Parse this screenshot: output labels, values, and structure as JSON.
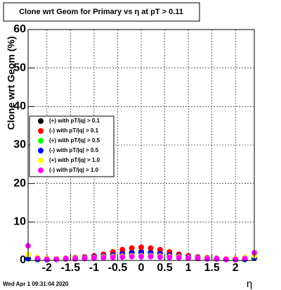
{
  "chart_data": {
    "type": "scatter",
    "title": "Clone wrt Geom for Primary vs   η at pT > 0.11",
    "y_label": "Clone wrt Geom (%)",
    "x_label": "η",
    "timestamp": "Wed Apr  1 09:31:04 2020",
    "xlim": [
      -2.4,
      2.4
    ],
    "ylim": [
      0,
      60
    ],
    "xticks": [
      -2,
      -1.5,
      -1,
      -0.5,
      0,
      0.5,
      1,
      1.5,
      2
    ],
    "yticks": [
      0,
      10,
      20,
      30,
      40,
      50,
      60
    ],
    "grid": true,
    "legend": "left",
    "x": [
      -2.4,
      -2.2,
      -2.0,
      -1.8,
      -1.6,
      -1.4,
      -1.2,
      -1.0,
      -0.8,
      -0.6,
      -0.4,
      -0.2,
      0,
      0.2,
      0.4,
      0.6,
      0.8,
      1.0,
      1.2,
      1.4,
      1.6,
      1.8,
      2.0,
      2.2,
      2.4
    ],
    "series": [
      {
        "name": "(+) with pT/|q| > 0.1",
        "color": "#000000",
        "values": [
          0.5,
          0.3,
          0.3,
          0.4,
          0.5,
          0.6,
          0.8,
          1.0,
          1.3,
          1.6,
          1.9,
          2.1,
          2.2,
          2.1,
          1.9,
          1.6,
          1.3,
          1.0,
          0.8,
          0.6,
          0.5,
          0.4,
          0.3,
          0.3,
          0.6
        ]
      },
      {
        "name": "(-) with pT/|q| > 0.1",
        "color": "#ff0000",
        "values": [
          0.6,
          0.4,
          0.3,
          0.4,
          0.5,
          0.7,
          0.9,
          1.2,
          1.6,
          2.2,
          2.8,
          3.2,
          3.4,
          3.2,
          2.8,
          2.2,
          1.6,
          1.2,
          0.9,
          0.7,
          0.5,
          0.4,
          0.3,
          0.4,
          0.8
        ]
      },
      {
        "name": "(+) with pT/|q| > 0.5",
        "color": "#00ff00",
        "values": [
          0.4,
          0.2,
          0.2,
          0.3,
          0.4,
          0.5,
          0.6,
          0.8,
          1.0,
          1.2,
          1.4,
          1.5,
          1.6,
          1.5,
          1.4,
          1.2,
          1.0,
          0.8,
          0.6,
          0.5,
          0.4,
          0.3,
          0.2,
          0.2,
          0.5
        ]
      },
      {
        "name": "(-) with pT/|q| > 0.5",
        "color": "#0000ff",
        "values": [
          0.5,
          0.3,
          0.2,
          0.3,
          0.4,
          0.5,
          0.7,
          0.9,
          1.1,
          1.4,
          1.7,
          1.9,
          2.0,
          1.9,
          1.7,
          1.4,
          1.1,
          0.9,
          0.7,
          0.5,
          0.4,
          0.3,
          0.2,
          0.3,
          0.6
        ]
      },
      {
        "name": "(+) with pT/|q| > 1.0",
        "color": "#ffff00",
        "values": [
          1.5,
          0.8,
          0.5,
          0.4,
          0.4,
          0.5,
          0.6,
          0.7,
          0.9,
          1.0,
          1.1,
          1.2,
          1.2,
          1.2,
          1.1,
          1.0,
          0.9,
          0.7,
          0.6,
          0.5,
          0.4,
          0.4,
          0.5,
          0.8,
          1.2
        ]
      },
      {
        "name": "(-) with pT/|q| > 1.0",
        "color": "#ff00ff",
        "values": [
          3.8,
          0.5,
          0.3,
          0.3,
          0.4,
          0.4,
          0.5,
          0.6,
          0.7,
          0.8,
          0.9,
          1.0,
          1.0,
          1.0,
          0.9,
          0.8,
          0.7,
          0.6,
          0.5,
          0.4,
          0.4,
          0.3,
          0.3,
          0.5,
          2.0
        ]
      }
    ]
  }
}
